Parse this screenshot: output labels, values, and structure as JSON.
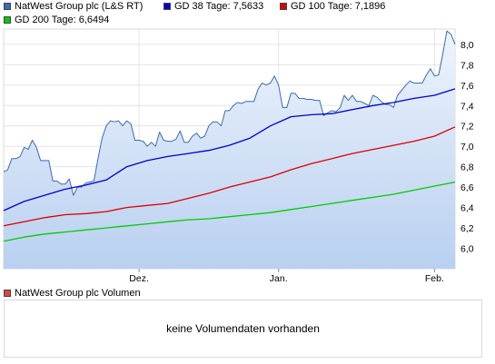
{
  "legend": [
    {
      "label": "NatWest Group plc (L&S RT)",
      "color": "#3a6bb5"
    },
    {
      "label": "GD 38 Tage: 7,5633",
      "color": "#0000cc"
    },
    {
      "label": "GD 100 Tage: 7,1896",
      "color": "#dd0000"
    },
    {
      "label": "GD 200 Tage: 6,6494",
      "color": "#00cc00"
    }
  ],
  "volume": {
    "legend_label": "NatWest Group plc Volumen",
    "legend_color": "#dd4444",
    "message": "keine Volumendaten vorhanden"
  },
  "chart_data": {
    "type": "line",
    "title": "",
    "xlabel": "",
    "ylabel": "",
    "x_range": [
      0,
      110
    ],
    "ylim": [
      5.8,
      8.15
    ],
    "y_ticks": [
      6.0,
      6.2,
      6.4,
      6.6,
      6.8,
      7.0,
      7.2,
      7.4,
      7.6,
      7.8,
      8.0
    ],
    "y_tick_labels": [
      "6,0",
      "6,2",
      "6,4",
      "6,6",
      "6,8",
      "7,0",
      "7,2",
      "7,4",
      "7,6",
      "7,8",
      "8,0"
    ],
    "x_ticks": [
      {
        "x": 33,
        "label": "Dez."
      },
      {
        "x": 67,
        "label": "Jan."
      },
      {
        "x": 105,
        "label": "Feb."
      }
    ],
    "grid": true,
    "series": [
      {
        "name": "NatWest Group plc (L&S RT)",
        "color": "#3a6bb5",
        "fill": true,
        "x": [
          0,
          1,
          2,
          3,
          4,
          5,
          6,
          7,
          8,
          9,
          10,
          11,
          12,
          13,
          14,
          15,
          16,
          17,
          18,
          19,
          20,
          21,
          22,
          23,
          24,
          25,
          26,
          27,
          28,
          29,
          30,
          31,
          32,
          33,
          34,
          35,
          36,
          37,
          38,
          39,
          40,
          41,
          42,
          43,
          44,
          45,
          46,
          47,
          48,
          49,
          50,
          51,
          52,
          53,
          54,
          55,
          56,
          57,
          58,
          59,
          60,
          61,
          62,
          63,
          64,
          65,
          66,
          67,
          68,
          69,
          70,
          71,
          72,
          73,
          74,
          75,
          76,
          77,
          78,
          79,
          80,
          81,
          82,
          83,
          84,
          85,
          86,
          87,
          88,
          89,
          90,
          91,
          92,
          93,
          94,
          95,
          96,
          97,
          98,
          99,
          100,
          101,
          102,
          103,
          104,
          105,
          106,
          107,
          108,
          109,
          110
        ],
        "values": [
          6.75,
          6.77,
          6.88,
          6.88,
          6.9,
          6.99,
          6.97,
          7.06,
          6.99,
          6.86,
          6.86,
          6.86,
          6.66,
          6.66,
          6.63,
          6.63,
          6.68,
          6.52,
          6.6,
          6.6,
          6.64,
          6.65,
          6.66,
          6.88,
          7.08,
          7.2,
          7.25,
          7.24,
          7.25,
          7.2,
          7.25,
          7.22,
          7.06,
          7.06,
          7.05,
          7.0,
          7.04,
          7.0,
          7.14,
          7.06,
          7.05,
          7.05,
          7.07,
          7.15,
          7.04,
          7.04,
          7.1,
          7.13,
          7.08,
          7.1,
          7.2,
          7.24,
          7.24,
          7.2,
          7.35,
          7.35,
          7.4,
          7.43,
          7.42,
          7.44,
          7.44,
          7.44,
          7.56,
          7.62,
          7.6,
          7.62,
          7.69,
          7.6,
          7.38,
          7.38,
          7.52,
          7.52,
          7.47,
          7.47,
          7.46,
          7.46,
          7.45,
          7.45,
          7.3,
          7.33,
          7.35,
          7.34,
          7.38,
          7.5,
          7.45,
          7.5,
          7.44,
          7.44,
          7.42,
          7.4,
          7.5,
          7.48,
          7.44,
          7.41,
          7.41,
          7.38,
          7.5,
          7.55,
          7.6,
          7.64,
          7.62,
          7.62,
          7.62,
          7.7,
          7.76,
          7.69,
          7.7,
          7.9,
          8.13,
          8.1,
          8.0
        ]
      },
      {
        "name": "GD 38 Tage: 7,5633",
        "color": "#0000cc",
        "x": [
          0,
          5,
          10,
          15,
          20,
          25,
          30,
          35,
          40,
          45,
          50,
          55,
          60,
          65,
          70,
          75,
          80,
          85,
          90,
          95,
          100,
          105,
          110
        ],
        "values": [
          6.37,
          6.46,
          6.52,
          6.58,
          6.62,
          6.67,
          6.8,
          6.86,
          6.9,
          6.93,
          6.96,
          7.01,
          7.08,
          7.2,
          7.29,
          7.31,
          7.32,
          7.36,
          7.4,
          7.43,
          7.47,
          7.5,
          7.563
        ]
      },
      {
        "name": "GD 100 Tage: 7,1896",
        "color": "#dd0000",
        "x": [
          0,
          5,
          10,
          15,
          20,
          25,
          30,
          35,
          40,
          45,
          50,
          55,
          60,
          65,
          70,
          75,
          80,
          85,
          90,
          95,
          100,
          105,
          110
        ],
        "values": [
          6.22,
          6.26,
          6.3,
          6.33,
          6.34,
          6.36,
          6.4,
          6.42,
          6.44,
          6.49,
          6.54,
          6.6,
          6.65,
          6.7,
          6.77,
          6.83,
          6.88,
          6.93,
          6.97,
          7.01,
          7.05,
          7.1,
          7.19
        ]
      },
      {
        "name": "GD 200 Tage: 6,6494",
        "color": "#00cc00",
        "x": [
          0,
          5,
          10,
          15,
          20,
          25,
          30,
          35,
          40,
          45,
          50,
          55,
          60,
          65,
          70,
          75,
          80,
          85,
          90,
          95,
          100,
          105,
          110
        ],
        "values": [
          6.07,
          6.11,
          6.14,
          6.16,
          6.18,
          6.2,
          6.22,
          6.24,
          6.26,
          6.28,
          6.29,
          6.31,
          6.33,
          6.35,
          6.38,
          6.41,
          6.44,
          6.47,
          6.5,
          6.53,
          6.57,
          6.61,
          6.649
        ]
      }
    ]
  }
}
